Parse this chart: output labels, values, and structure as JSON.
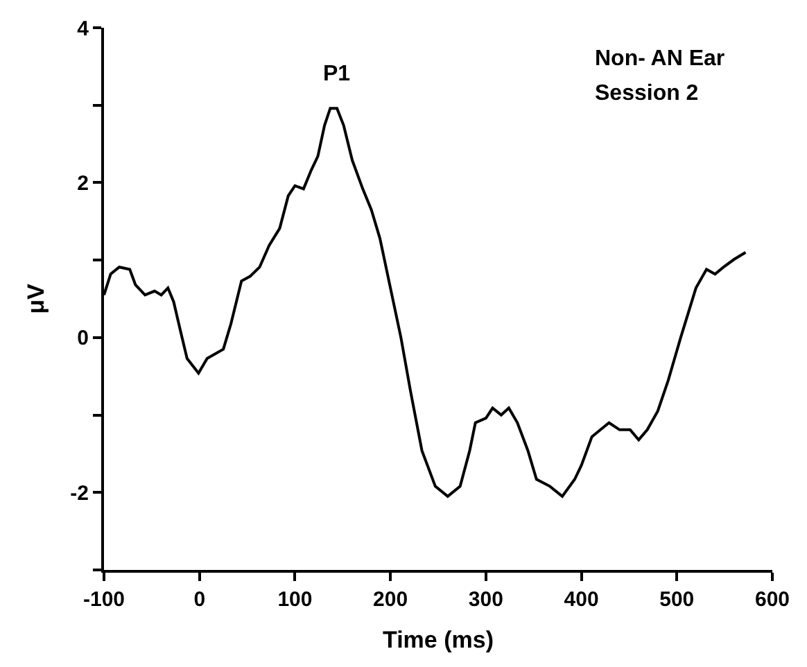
{
  "chart_data": {
    "type": "line",
    "xlabel": "Time (ms)",
    "ylabel": "μV",
    "x": [
      -100,
      -93,
      -84,
      -73,
      -67,
      -57,
      -47,
      -40,
      -33,
      -27,
      -20,
      -13,
      -1,
      8,
      15,
      25,
      33,
      44,
      53,
      63,
      73,
      84,
      93,
      100,
      109,
      117,
      124,
      131,
      137,
      144,
      151,
      160,
      171,
      180,
      189,
      200,
      211,
      221,
      233,
      247,
      260,
      273,
      283,
      289,
      300,
      307,
      316,
      324,
      333,
      344,
      353,
      367,
      380,
      393,
      400,
      411,
      420,
      429,
      440,
      451,
      460,
      469,
      480,
      491,
      504,
      520,
      531,
      540,
      549,
      560,
      572
    ],
    "series": [
      {
        "color": "#000000",
        "values": [
          0.55,
          0.82,
          0.91,
          0.88,
          0.68,
          0.55,
          0.6,
          0.55,
          0.64,
          0.46,
          0.09,
          -0.27,
          -0.46,
          -0.27,
          -0.22,
          -0.15,
          0.18,
          0.73,
          0.79,
          0.91,
          1.19,
          1.41,
          1.83,
          1.96,
          1.92,
          2.16,
          2.34,
          2.74,
          2.96,
          2.96,
          2.74,
          2.29,
          1.92,
          1.65,
          1.28,
          0.64,
          0,
          -0.69,
          -1.46,
          -1.92,
          -2.05,
          -1.92,
          -1.46,
          -1.1,
          -1.04,
          -0.91,
          -1.0,
          -0.91,
          -1.1,
          -1.46,
          -1.83,
          -1.92,
          -2.05,
          -1.83,
          -1.65,
          -1.28,
          -1.19,
          -1.1,
          -1.19,
          -1.19,
          -1.32,
          -1.19,
          -0.95,
          -0.55,
          0,
          0.64,
          0.88,
          0.82,
          0.91,
          1.01,
          1.1
        ]
      }
    ],
    "xlim": [
      -100,
      600
    ],
    "xticks": [
      -100,
      0,
      100,
      200,
      300,
      400,
      500,
      600
    ],
    "ylim": [
      -3,
      4
    ],
    "yticks": [
      {
        "value": -3,
        "label": null
      },
      -2,
      {
        "value": -1,
        "label": null
      },
      0,
      {
        "value": 1,
        "label": null
      },
      2,
      {
        "value": 3,
        "label": null
      },
      4
    ],
    "annotations": [
      {
        "text": "P1",
        "x": 144,
        "y": 2.96
      },
      "Non- AN Ear",
      "Session 2"
    ],
    "marker": "none",
    "line_style": "solid"
  }
}
